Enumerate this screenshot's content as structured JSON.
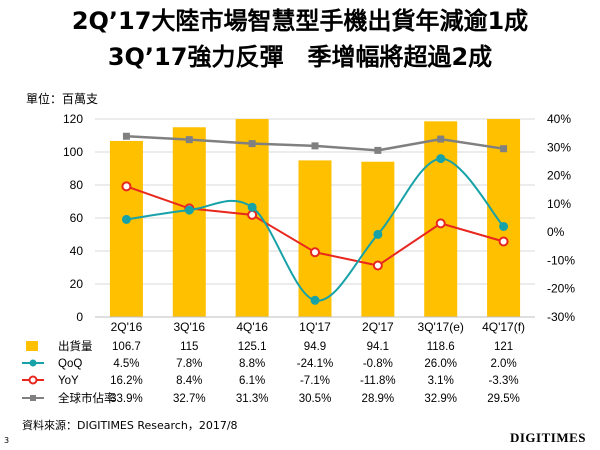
{
  "title_line1": "2Q’17大陸市場智慧型手機出貨年減逾1成",
  "title_line2": "3Q’17強力反彈　季增幅將超過2成",
  "unit_label": "單位：百萬支",
  "source": "資料來源：DIGITIMES Research，2017/8",
  "page_number": "3",
  "logo_text": "DIGITIMES",
  "colors": {
    "bar": "#FFC000",
    "qoq": "#17A2A8",
    "yoy": "#E8271E",
    "share": "#808080"
  },
  "chart_data": {
    "type": "bar",
    "categories": [
      "2Q'16",
      "3Q'16",
      "4Q'16",
      "1Q'17",
      "2Q'17",
      "3Q'17(e)",
      "4Q'17(f)"
    ],
    "left_axis": {
      "min": 0,
      "max": 120,
      "ticks": [
        "0",
        "20",
        "40",
        "60",
        "80",
        "100",
        "120"
      ]
    },
    "right_axis": {
      "min": -30,
      "max": 40,
      "ticks": [
        "-30%",
        "-20%",
        "-10%",
        "0%",
        "10%",
        "20%",
        "30%",
        "40%"
      ]
    },
    "series": [
      {
        "name": "出貨量",
        "kind": "bar",
        "axis": "left",
        "values": [
          106.7,
          115,
          125.1,
          94.9,
          94.1,
          118.6,
          121
        ],
        "labels": [
          "106.7",
          "115",
          "125.1",
          "94.9",
          "94.1",
          "118.6",
          "121"
        ]
      },
      {
        "name": "QoQ",
        "kind": "line-smooth",
        "axis": "right",
        "values": [
          4.5,
          7.8,
          8.8,
          -24.1,
          -0.8,
          26.0,
          2.0
        ],
        "labels": [
          "4.5%",
          "7.8%",
          "8.8%",
          "-24.1%",
          "-0.8%",
          "26.0%",
          "2.0%"
        ]
      },
      {
        "name": "YoY",
        "kind": "line",
        "axis": "right",
        "values": [
          16.2,
          8.4,
          6.1,
          -7.1,
          -11.8,
          3.1,
          -3.3
        ],
        "labels": [
          "16.2%",
          "8.4%",
          "6.1%",
          "-7.1%",
          "-11.8%",
          "3.1%",
          "-3.3%"
        ]
      },
      {
        "name": "全球市佔率",
        "kind": "line",
        "axis": "right",
        "values": [
          33.9,
          32.7,
          31.3,
          30.5,
          28.9,
          32.9,
          29.5
        ],
        "labels": [
          "33.9%",
          "32.7%",
          "31.3%",
          "30.5%",
          "28.9%",
          "32.9%",
          "29.5%"
        ]
      }
    ]
  }
}
